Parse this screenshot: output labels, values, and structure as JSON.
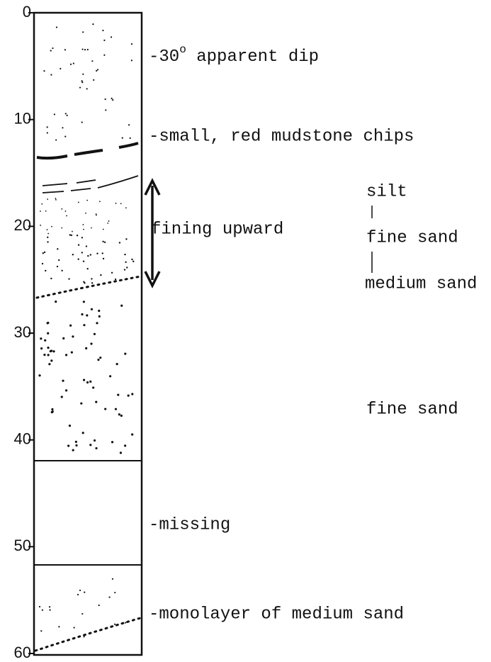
{
  "depth_axis": {
    "range": [
      0,
      60
    ],
    "ticks": [
      0,
      10,
      20,
      30,
      40,
      50,
      60
    ]
  },
  "annotations": {
    "dip": {
      "lead": "-30",
      "sup": "o",
      "rest": " apparent dip"
    },
    "chips": "-small, red mudstone chips",
    "fining": "fining upward",
    "missing": "-missing",
    "monolayer": "-monolayer of medium sand"
  },
  "grain_sequence": [
    "silt",
    "fine sand",
    "medium sand"
  ],
  "lower_unit": "fine sand"
}
